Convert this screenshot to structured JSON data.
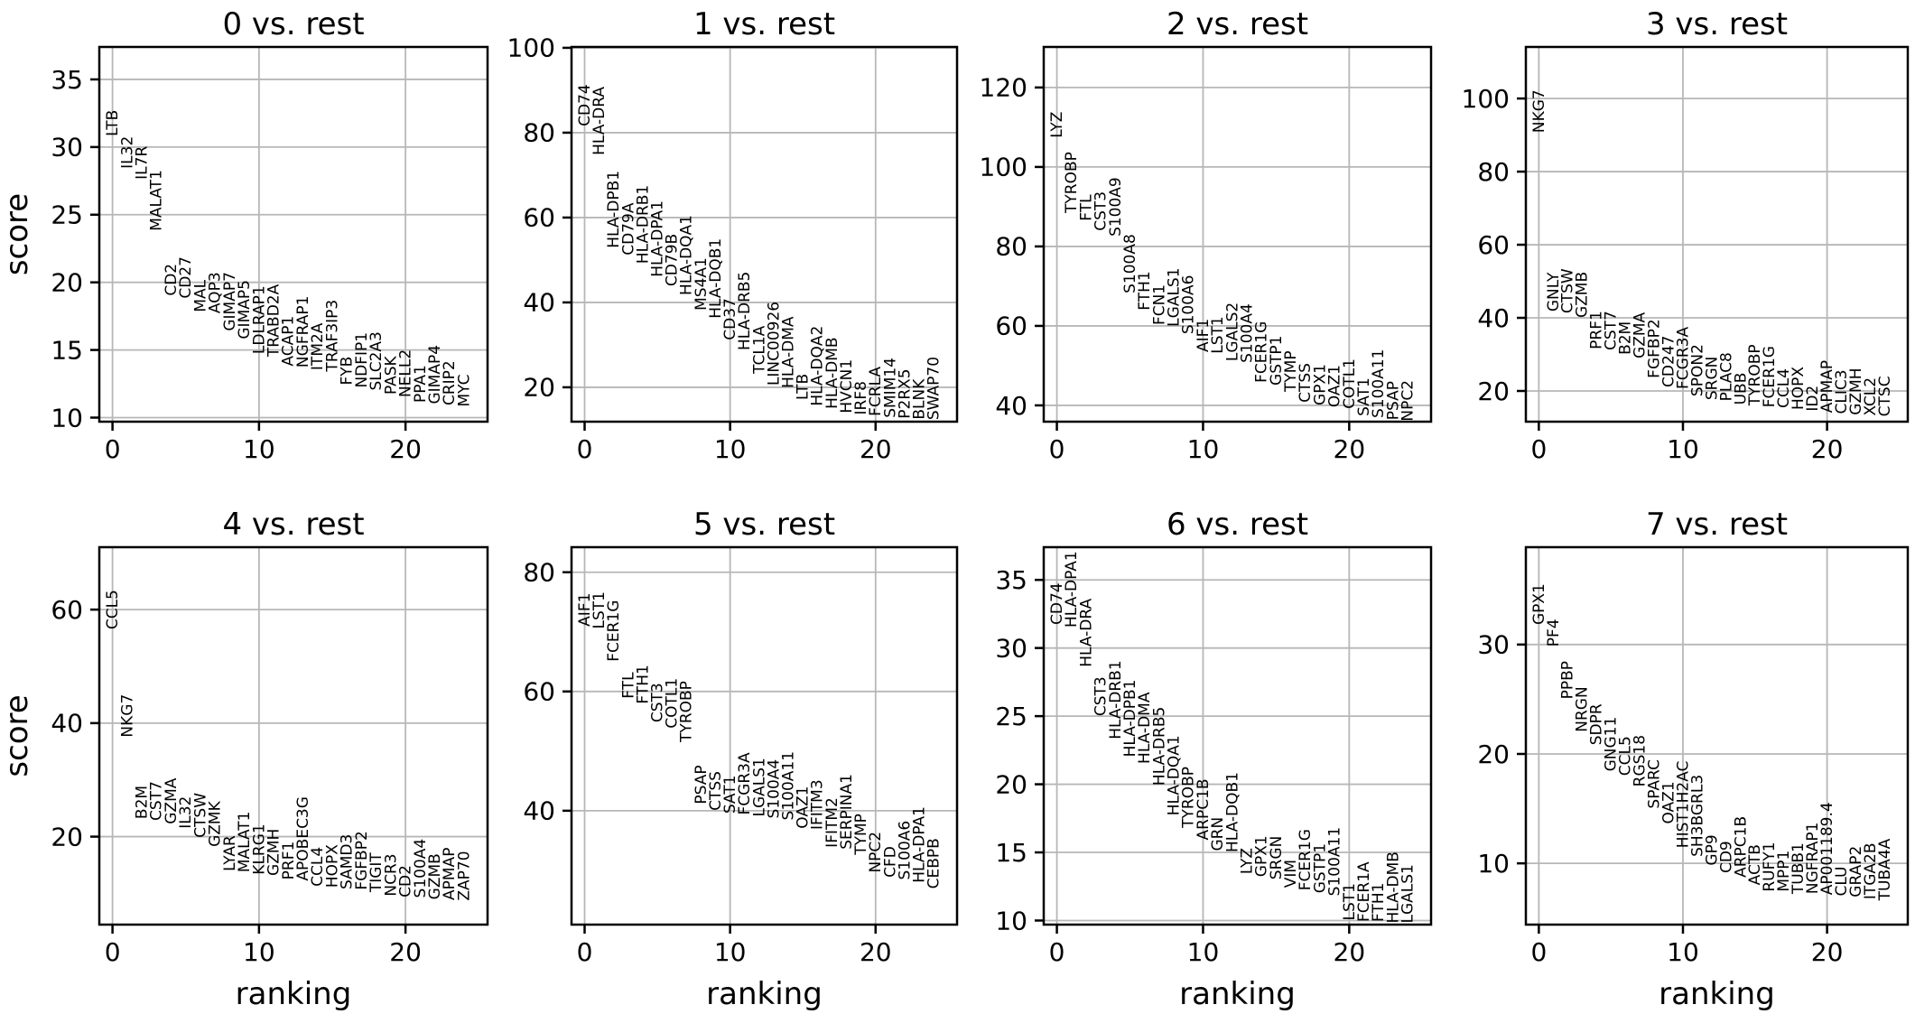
{
  "figure": {
    "background": "#ffffff",
    "grid_color": "#b7b7b7",
    "spine_color": "#000000",
    "text_color": "#000000",
    "description": "rank genes groups score vs ranking, 8 clusters"
  },
  "chart_data": [
    {
      "type": "scatter",
      "title": "0 vs. rest",
      "xlabel": "",
      "ylabel": "score",
      "grid": true,
      "legend": "none",
      "label_rotation": "vertical",
      "xticks": [
        0,
        10,
        20
      ],
      "yticks": [
        10,
        15,
        20,
        25,
        30,
        35
      ],
      "xlim": [
        -0.9,
        25.6
      ],
      "ylim": [
        9.7,
        37.4
      ],
      "genes": [
        "LTB",
        "IL32",
        "IL7R",
        "MALAT1",
        "CD2",
        "CD27",
        "MAL",
        "AQP3",
        "GIMAP7",
        "GIMAP5",
        "LDLRAP1",
        "TRABD2A",
        "ACAP1",
        "NGFRAP1",
        "ITM2A",
        "TRAF3IP3",
        "FYB",
        "NDFIP1",
        "SLC2A3",
        "PASK",
        "NELL2",
        "PPA1",
        "GIMAP4",
        "CRIP2",
        "MYC"
      ],
      "scores": [
        30.8,
        28.4,
        27.6,
        23.8,
        19.0,
        18.8,
        17.8,
        17.7,
        16.4,
        15.8,
        14.7,
        14.5,
        13.8,
        13.7,
        13.5,
        13.4,
        12.4,
        12.2,
        12.0,
        11.7,
        11.5,
        11.1,
        11.0,
        10.9,
        10.8
      ]
    },
    {
      "type": "scatter",
      "title": "1 vs. rest",
      "xlabel": "",
      "ylabel": "",
      "grid": true,
      "legend": "none",
      "label_rotation": "vertical",
      "xticks": [
        0,
        10,
        20
      ],
      "yticks": [
        20,
        40,
        60,
        80,
        100
      ],
      "xlim": [
        -0.9,
        25.6
      ],
      "ylim": [
        11.9,
        100.2
      ],
      "genes": [
        "CD74",
        "HLA-DRA",
        "HLA-DPB1",
        "CD79A",
        "HLA-DRB1",
        "HLA-DPA1",
        "CD79B",
        "HLA-DQA1",
        "MS4A1",
        "HLA-DQB1",
        "CD37",
        "HLA-DRB5",
        "TCL1A",
        "LINC00926",
        "HLA-DMA",
        "LTB",
        "HLA-DQA2",
        "HLA-DMB",
        "HVCN1",
        "IRF8",
        "FCRLA",
        "SMIM14",
        "P2RX5",
        "BLNK",
        "SWAP70"
      ],
      "scores": [
        81.5,
        74.7,
        52.8,
        51.1,
        49.1,
        46.0,
        43.8,
        41.7,
        38.1,
        36.2,
        31.1,
        28.7,
        23.2,
        20.4,
        19.8,
        17.0,
        15.6,
        14.9,
        13.9,
        13.5,
        13.2,
        12.8,
        12.6,
        12.4,
        12.3
      ]
    },
    {
      "type": "scatter",
      "title": "2 vs. rest",
      "xlabel": "",
      "ylabel": "",
      "grid": true,
      "legend": "none",
      "label_rotation": "vertical",
      "xticks": [
        0,
        10,
        20
      ],
      "yticks": [
        40,
        60,
        80,
        100,
        120
      ],
      "xlim": [
        -0.9,
        25.6
      ],
      "ylim": [
        35.9,
        130.2
      ],
      "genes": [
        "LYZ",
        "TYROBP",
        "FTL",
        "CST3",
        "S100A9",
        "S100A8",
        "FTH1",
        "FCN1",
        "LGALS1",
        "S100A6",
        "AIF1",
        "LST1",
        "LGALS2",
        "S100A4",
        "FCER1G",
        "GSTP1",
        "TYMP",
        "CTSS",
        "GPX1",
        "OAZ1",
        "COTL1",
        "SAT1",
        "S100A11",
        "PSAP",
        "NPC2"
      ],
      "scores": [
        107.3,
        88.4,
        86.4,
        83.9,
        82.5,
        68.2,
        63.9,
        60.2,
        59.8,
        57.9,
        53.4,
        53.0,
        51.1,
        50.7,
        45.7,
        45.0,
        43.4,
        40.7,
        40.0,
        39.5,
        39.1,
        37.3,
        36.8,
        36.3,
        36.0
      ]
    },
    {
      "type": "scatter",
      "title": "3 vs. rest",
      "xlabel": "",
      "ylabel": "",
      "grid": true,
      "legend": "none",
      "label_rotation": "vertical",
      "xticks": [
        0,
        10,
        20
      ],
      "yticks": [
        20,
        40,
        60,
        80,
        100
      ],
      "xlim": [
        -0.9,
        25.6
      ],
      "ylim": [
        11.6,
        114.1
      ],
      "genes": [
        "NKG7",
        "GNLY",
        "CTSW",
        "GZMB",
        "PRF1",
        "CST7",
        "B2M",
        "GZMA",
        "FGFBP2",
        "CD247",
        "FCGR3A",
        "SPON2",
        "SRGN",
        "PLAC8",
        "UBB",
        "TYROBP",
        "FCER1G",
        "CCL4",
        "HOPX",
        "ID2",
        "APMAP",
        "CLIC3",
        "GZMH",
        "XCL2",
        "CTSC"
      ],
      "scores": [
        90.6,
        41.7,
        41.2,
        40.0,
        31.4,
        31.1,
        29.9,
        28.9,
        23.5,
        21.0,
        20.5,
        18.5,
        17.5,
        17.2,
        16.2,
        16.0,
        15.5,
        15.3,
        14.8,
        14.4,
        14.0,
        13.7,
        13.4,
        13.2,
        13.0
      ]
    },
    {
      "type": "scatter",
      "title": "4 vs. rest",
      "xlabel": "ranking",
      "ylabel": "score",
      "grid": true,
      "legend": "none",
      "label_rotation": "vertical",
      "xticks": [
        0,
        10,
        20
      ],
      "yticks": [
        20,
        40,
        60
      ],
      "xlim": [
        -0.9,
        25.6
      ],
      "ylim": [
        4.5,
        71.0
      ],
      "genes": [
        "CCL5",
        "NKG7",
        "B2M",
        "CST7",
        "GZMA",
        "IL32",
        "CTSW",
        "GZMK",
        "LYAR",
        "MALAT1",
        "KLRG1",
        "GZMH",
        "PRF1",
        "APOBEC3G",
        "CCL4",
        "HOPX",
        "SAMD3",
        "FGFBP2",
        "TIGIT",
        "NCR3",
        "CD2",
        "S100A4",
        "GZMB",
        "APMAP",
        "ZAP70"
      ],
      "scores": [
        56.5,
        37.5,
        23.1,
        22.8,
        22.2,
        21.4,
        19.8,
        18.2,
        13.9,
        13.7,
        13.3,
        13.1,
        12.4,
        12.2,
        11.2,
        11.0,
        10.7,
        10.6,
        10.2,
        9.5,
        9.3,
        9.2,
        8.9,
        8.8,
        8.7
      ]
    },
    {
      "type": "scatter",
      "title": "5 vs. rest",
      "xlabel": "ranking",
      "ylabel": "",
      "grid": true,
      "legend": "none",
      "label_rotation": "vertical",
      "xticks": [
        0,
        10,
        20
      ],
      "yticks": [
        40,
        60,
        80
      ],
      "xlim": [
        -0.9,
        25.6
      ],
      "ylim": [
        20.9,
        84.2
      ],
      "genes": [
        "AIF1",
        "LST1",
        "FCER1G",
        "FTL",
        "FTH1",
        "CST3",
        "COTL1",
        "TYROBP",
        "PSAP",
        "CTSS",
        "SAT1",
        "FCGR3A",
        "LGALS1",
        "S100A4",
        "S100A11",
        "OAZ1",
        "IFITM3",
        "IFITM2",
        "SERPINA1",
        "TYMP",
        "NPC2",
        "CFD",
        "S100A6",
        "HLA-DPA1",
        "CEBPB"
      ],
      "scores": [
        70.9,
        70.5,
        65.0,
        58.8,
        57.9,
        54.8,
        53.8,
        51.5,
        41.1,
        40.0,
        39.5,
        39.3,
        39.0,
        38.7,
        38.4,
        37.0,
        36.8,
        33.8,
        33.5,
        32.6,
        29.6,
        28.8,
        28.4,
        27.9,
        26.9
      ]
    },
    {
      "type": "scatter",
      "title": "6 vs. rest",
      "xlabel": "ranking",
      "ylabel": "",
      "grid": true,
      "legend": "none",
      "label_rotation": "vertical",
      "xticks": [
        0,
        10,
        20
      ],
      "yticks": [
        10,
        15,
        20,
        25,
        30,
        35
      ],
      "xlim": [
        -0.9,
        25.6
      ],
      "ylim": [
        9.7,
        37.4
      ],
      "genes": [
        "CD74",
        "HLA-DPA1",
        "HLA-DRA",
        "CST3",
        "HLA-DRB1",
        "HLA-DPB1",
        "HLA-DMA",
        "HLA-DRB5",
        "HLA-DQA1",
        "TYROBP",
        "ARPC1B",
        "GRN",
        "HLA-DQB1",
        "LYZ",
        "GPX1",
        "SRGN",
        "VIM",
        "FCER1G",
        "GSTP1",
        "S100A11",
        "LST1",
        "FCER1A",
        "FTH1",
        "HLA-DMB",
        "LGALS1"
      ],
      "scores": [
        31.7,
        31.5,
        28.6,
        25.0,
        23.3,
        22.0,
        21.5,
        19.9,
        17.7,
        16.8,
        15.9,
        15.1,
        15.0,
        13.4,
        13.2,
        13.0,
        12.4,
        12.2,
        12.0,
        11.8,
        10.0,
        9.9,
        9.9,
        9.8,
        9.8
      ]
    },
    {
      "type": "scatter",
      "title": "7 vs. rest",
      "xlabel": "ranking",
      "ylabel": "",
      "grid": true,
      "legend": "none",
      "label_rotation": "vertical",
      "xticks": [
        0,
        10,
        20
      ],
      "yticks": [
        10,
        20,
        30
      ],
      "xlim": [
        -0.9,
        25.6
      ],
      "ylim": [
        4.4,
        38.9
      ],
      "genes": [
        "GPX1",
        "PF4",
        "PPBP",
        "NRGN",
        "SDPR",
        "GNG11",
        "CCL5",
        "RGS18",
        "SPARC",
        "OAZ1",
        "HIST1H2AC",
        "SH3BGRL3",
        "GP9",
        "CD9",
        "ARPC1B",
        "ACTB",
        "RUFY1",
        "MPP1",
        "TUBB1",
        "NGFRAP1",
        "AP001189.4",
        "CLU",
        "GRAP2",
        "ITGA2B",
        "TUBA4A"
      ],
      "scores": [
        31.8,
        29.8,
        25.0,
        22.0,
        20.8,
        18.4,
        18.0,
        17.0,
        15.0,
        13.6,
        11.4,
        10.6,
        9.8,
        9.1,
        8.7,
        8.0,
        7.4,
        7.4,
        7.2,
        7.2,
        7.1,
        7.0,
        6.9,
        6.7,
        6.6
      ]
    }
  ]
}
